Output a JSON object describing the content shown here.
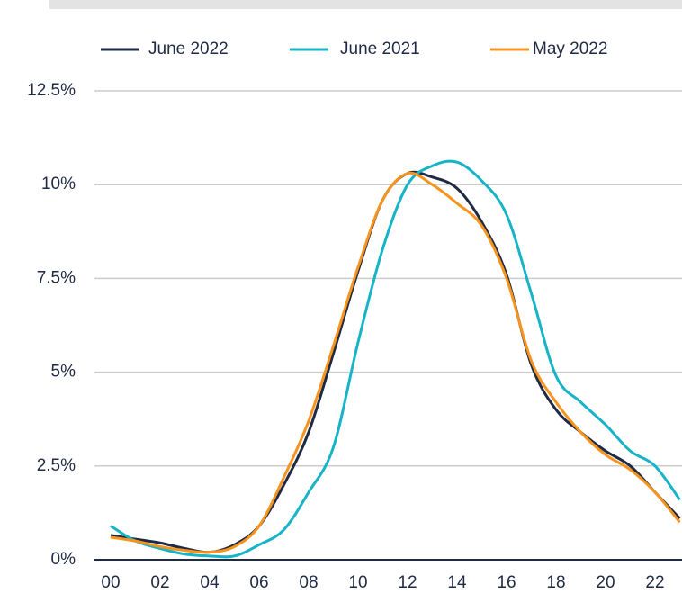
{
  "chart_data": {
    "type": "line",
    "categories": [
      "00",
      null,
      "02",
      null,
      "04",
      null,
      "06",
      null,
      "08",
      null,
      "10",
      null,
      "12",
      null,
      "14",
      null,
      "16",
      null,
      "18",
      null,
      "20",
      null,
      "22",
      null
    ],
    "series": [
      {
        "name": "June 2022",
        "color": "#1f2a44",
        "values": [
          0.65,
          0.55,
          0.45,
          0.3,
          0.2,
          0.4,
          0.9,
          2.0,
          3.4,
          5.5,
          7.7,
          9.6,
          10.3,
          10.2,
          9.9,
          9.0,
          7.6,
          5.2,
          4.0,
          3.4,
          2.9,
          2.5,
          1.8,
          1.1
        ]
      },
      {
        "name": "June 2021",
        "color": "#17b3c6",
        "values": [
          0.9,
          0.5,
          0.3,
          0.15,
          0.1,
          0.1,
          0.4,
          0.8,
          1.8,
          3.0,
          5.8,
          8.3,
          10.0,
          10.5,
          10.6,
          10.1,
          9.2,
          7.1,
          4.9,
          4.2,
          3.6,
          2.9,
          2.5,
          1.6
        ]
      },
      {
        "name": "May 2022",
        "color": "#f7941d",
        "values": [
          0.6,
          0.5,
          0.35,
          0.25,
          0.2,
          0.35,
          0.9,
          2.2,
          3.7,
          5.7,
          7.8,
          9.6,
          10.3,
          10.0,
          9.5,
          8.9,
          7.5,
          5.3,
          4.2,
          3.4,
          2.8,
          2.4,
          1.8,
          1.0
        ]
      }
    ],
    "ylim": [
      0,
      12.5
    ],
    "yticks": [
      {
        "value": 0,
        "label": "0%"
      },
      {
        "value": 2.5,
        "label": "2.5%"
      },
      {
        "value": 5,
        "label": "5%"
      },
      {
        "value": 7.5,
        "label": "7.5%"
      },
      {
        "value": 10,
        "label": "10%"
      },
      {
        "value": 12.5,
        "label": "12.5%"
      }
    ],
    "grid": true,
    "legend": "top"
  }
}
